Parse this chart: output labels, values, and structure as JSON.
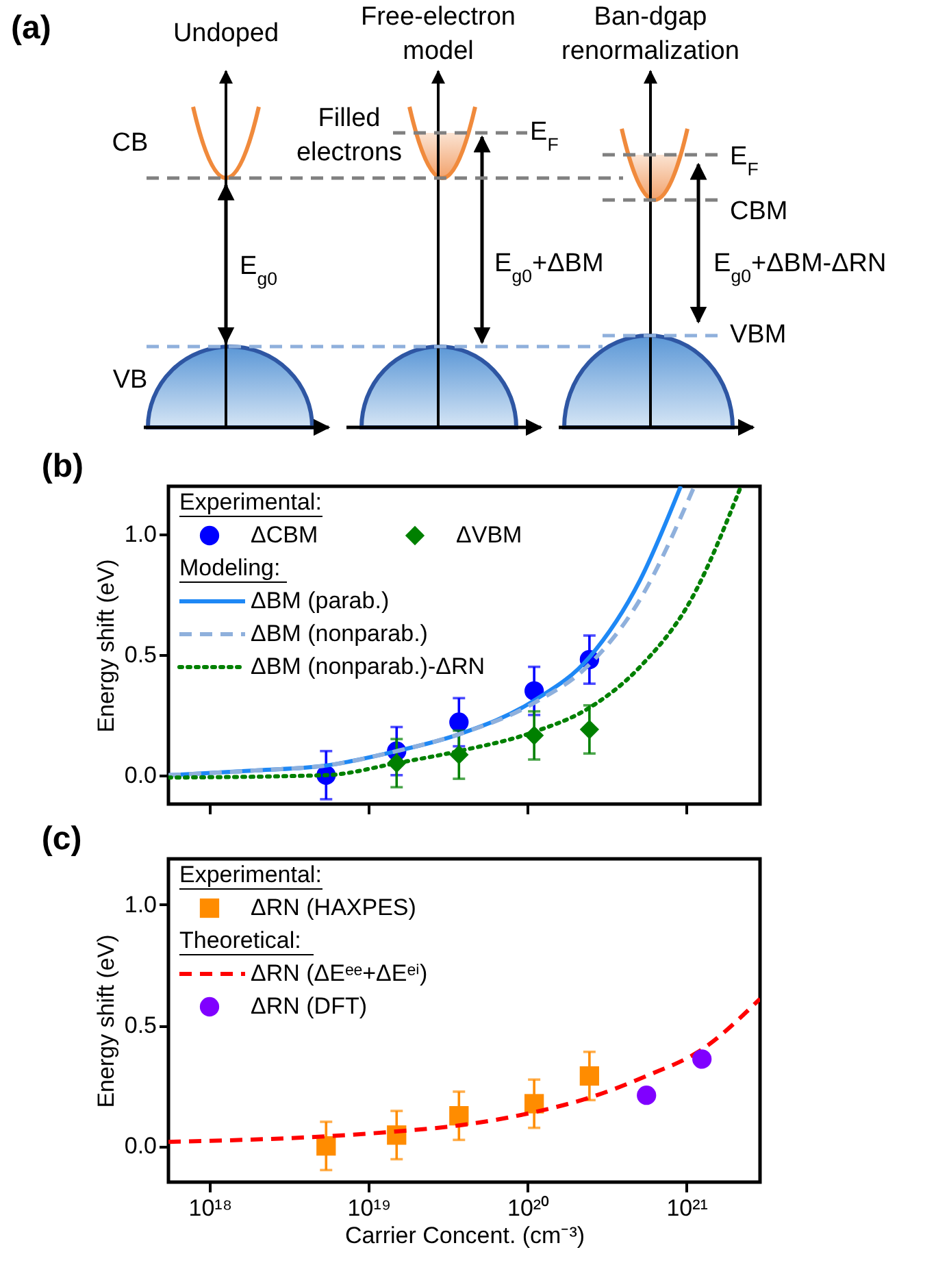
{
  "chart_data": [
    {
      "type": "other",
      "title": "(a)",
      "annotations": [
        "Undoped",
        "Free-electron model",
        "Ban-dgap renormalization",
        "CB",
        "VB",
        "Filled electrons",
        "E$_{g0}$",
        "E$_{g0}$+ΔBM",
        "E$_{g0}$+ΔBM-ΔRN",
        "E$_{F}$",
        "E$_{F}$",
        "CBM",
        "VBM"
      ]
    },
    {
      "type": "line",
      "title": "(b)",
      "ylabel": "Energy shift (eV)",
      "log": "x",
      "xlim": [
        5.5e+17,
        2.9e+21
      ],
      "xticks": [
        {
          "value": 1e+18,
          "label": null
        },
        {
          "value": 1e+19,
          "label": null
        },
        {
          "value": 1e+20,
          "label": null
        },
        {
          "value": 1e+21,
          "label": null
        }
      ],
      "ylim": [
        -0.12,
        1.2
      ],
      "yticks": [
        {
          "value": 0,
          "label": "0.0"
        },
        {
          "value": 0.5,
          "label": "0.5"
        },
        {
          "value": 1,
          "label": "1.0"
        }
      ],
      "tick_labels": "y",
      "legend": "top left",
      "annotations": [
        "Experimental:",
        "Modeling:"
      ],
      "series": [
        {
          "name": "ΔCBM",
          "type": "scatter",
          "marker": "circle",
          "color": "#0000ff",
          "x": [
            5.4e+18,
            1.5e+19,
            3.7e+19,
            1.1e+20,
            2.45e+20
          ],
          "values": [
            0.0,
            0.1,
            0.22,
            0.35,
            0.48
          ],
          "errors": [
            0.1,
            0.1,
            0.1,
            0.1,
            0.1
          ]
        },
        {
          "name": "ΔVBM",
          "type": "scatter",
          "marker": "diamond",
          "color": "#008000",
          "x": [
            1.5e+19,
            3.7e+19,
            1.1e+20,
            2.45e+20
          ],
          "values": [
            0.05,
            0.085,
            0.165,
            0.19
          ],
          "errors": [
            0.1,
            0.1,
            0.1,
            0.1
          ]
        },
        {
          "name": "ΔBM (parab.)",
          "type": "line",
          "line_style": "solid",
          "color": "#1e88f5",
          "x": [
            5.5e+17,
            2e+18,
            5.4e+18,
            1.5e+19,
            3.7e+19,
            1.1e+20,
            2.45e+20,
            5.1e+20,
            9.2e+20
          ],
          "values": [
            0.0,
            0.02,
            0.04,
            0.1,
            0.17,
            0.31,
            0.49,
            0.81,
            1.2
          ]
        },
        {
          "name": "ΔBM (nonparab.)",
          "type": "line",
          "line_style": "dashed",
          "color": "#8fb0dc",
          "x": [
            5.5e+17,
            2e+18,
            5.4e+18,
            1.5e+19,
            3.7e+19,
            1.1e+20,
            2.45e+20,
            5.1e+20,
            1.12e+21
          ],
          "values": [
            0.0,
            0.02,
            0.04,
            0.1,
            0.17,
            0.3,
            0.46,
            0.73,
            1.2
          ]
        },
        {
          "name": "ΔBM (nonparab.)-ΔRN",
          "type": "line",
          "line_style": "dotted",
          "color": "#008000",
          "x": [
            5.5e+17,
            5.4e+18,
            1.5e+19,
            3.7e+19,
            1.1e+20,
            2.45e+20,
            5.1e+20,
            1.07e+21,
            2.2e+21
          ],
          "values": [
            -0.01,
            0.0,
            0.05,
            0.1,
            0.18,
            0.28,
            0.45,
            0.73,
            1.2
          ]
        }
      ]
    },
    {
      "type": "line",
      "title": "(c)",
      "xlabel": "Carrier Concent. (cm⁻³)",
      "ylabel": "Energy shift (eV)",
      "log": "x",
      "xlim": [
        5.5e+17,
        2.9e+21
      ],
      "xticks": [
        {
          "value": 1e+18,
          "label": "10¹⁸"
        },
        {
          "value": 1e+19,
          "label": "10¹⁹"
        },
        {
          "value": 1e+20,
          "label": "10²⁰"
        },
        {
          "value": 1e+21,
          "label": "10²¹"
        }
      ],
      "ylim": [
        -0.15,
        1.19
      ],
      "yticks": [
        {
          "value": 0,
          "label": "0.0"
        },
        {
          "value": 0.5,
          "label": "0.5"
        },
        {
          "value": 1,
          "label": "1.0"
        }
      ],
      "legend": "top left",
      "annotations": [
        "Experimental:",
        "Theoretical:"
      ],
      "series": [
        {
          "name": "ΔRN (HAXPES)",
          "type": "scatter",
          "marker": "square",
          "color": "#ff8c00",
          "x": [
            5.4e+18,
            1.5e+19,
            3.7e+19,
            1.1e+20,
            2.45e+20
          ],
          "values": [
            0.0,
            0.045,
            0.125,
            0.175,
            0.29
          ],
          "errors": [
            0.1,
            0.1,
            0.1,
            0.1,
            0.1
          ]
        },
        {
          "name": "ΔRN (ΔEᵉᵉ+ΔEᵉⁱ)",
          "type": "line",
          "line_style": "dashed",
          "color": "#ff0000",
          "x": [
            5.5e+17,
            5.4e+18,
            1.5e+19,
            3.7e+19,
            1.1e+20,
            2.45e+20,
            5.6e+20,
            1.25e+21,
            2.9e+21
          ],
          "values": [
            0.017,
            0.04,
            0.06,
            0.085,
            0.14,
            0.2,
            0.29,
            0.4,
            0.61
          ]
        },
        {
          "name": "ΔRN (DFT)",
          "type": "scatter",
          "marker": "circle",
          "color": "#8000ff",
          "x": [
            5.6e+20,
            1.25e+21
          ],
          "values": [
            0.21,
            0.36
          ]
        }
      ]
    }
  ]
}
